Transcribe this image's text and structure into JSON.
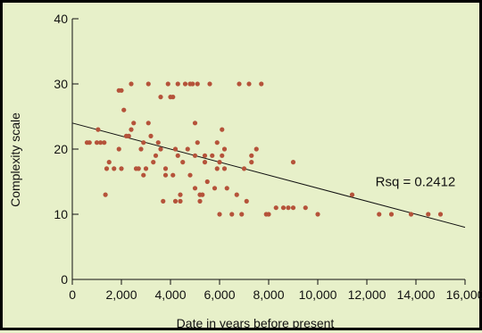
{
  "chart_data": {
    "type": "scatter",
    "title": "",
    "xlabel": "Date in years before present",
    "ylabel": "Complexity scale",
    "xlim": [
      0,
      16000
    ],
    "ylim": [
      0,
      40
    ],
    "xticks": [
      0,
      2000,
      4000,
      6000,
      8000,
      10000,
      12000,
      14000,
      16000
    ],
    "xtick_labels": [
      "0",
      "2,000",
      "4,000",
      "6,000",
      "8,000",
      "10,000",
      "12,000",
      "14,000",
      "16,000"
    ],
    "yticks": [
      0,
      10,
      20,
      30,
      40
    ],
    "ytick_labels": [
      "0",
      "10",
      "20",
      "30",
      "40"
    ],
    "grid": false,
    "point_color": "#b5533a",
    "trendline": {
      "x": [
        0,
        16000
      ],
      "y": [
        24,
        8
      ]
    },
    "annotation": {
      "text": "Rsq = 0.2412",
      "x": 12350,
      "y": 15
    },
    "points": [
      [
        600,
        21
      ],
      [
        700,
        21
      ],
      [
        1000,
        21
      ],
      [
        1050,
        23
      ],
      [
        1150,
        21
      ],
      [
        1300,
        21
      ],
      [
        1350,
        13
      ],
      [
        1400,
        17
      ],
      [
        1500,
        18
      ],
      [
        1700,
        17
      ],
      [
        1900,
        29
      ],
      [
        2000,
        29
      ],
      [
        1900,
        20
      ],
      [
        2000,
        17
      ],
      [
        2100,
        26
      ],
      [
        2200,
        22
      ],
      [
        2300,
        22
      ],
      [
        2400,
        30
      ],
      [
        2400,
        23
      ],
      [
        2500,
        24
      ],
      [
        2600,
        17
      ],
      [
        2700,
        17
      ],
      [
        2800,
        20
      ],
      [
        2900,
        16
      ],
      [
        2900,
        21
      ],
      [
        3000,
        17
      ],
      [
        3100,
        30
      ],
      [
        3100,
        24
      ],
      [
        3200,
        22
      ],
      [
        3300,
        18
      ],
      [
        3400,
        19
      ],
      [
        3500,
        21
      ],
      [
        3600,
        28
      ],
      [
        3600,
        20
      ],
      [
        3700,
        12
      ],
      [
        3800,
        17
      ],
      [
        3800,
        16
      ],
      [
        3900,
        30
      ],
      [
        4000,
        28
      ],
      [
        4100,
        28
      ],
      [
        4100,
        16
      ],
      [
        4200,
        12
      ],
      [
        4200,
        20
      ],
      [
        4300,
        19
      ],
      [
        4300,
        30
      ],
      [
        4400,
        12
      ],
      [
        4400,
        13
      ],
      [
        4500,
        18
      ],
      [
        4600,
        30
      ],
      [
        4700,
        20
      ],
      [
        4800,
        30
      ],
      [
        4800,
        16
      ],
      [
        4900,
        30
      ],
      [
        5000,
        24
      ],
      [
        5000,
        19
      ],
      [
        5000,
        14
      ],
      [
        5100,
        21
      ],
      [
        5100,
        30
      ],
      [
        5200,
        12
      ],
      [
        5200,
        13
      ],
      [
        5300,
        13
      ],
      [
        5400,
        18
      ],
      [
        5400,
        19
      ],
      [
        5500,
        15
      ],
      [
        5600,
        30
      ],
      [
        5700,
        19
      ],
      [
        5800,
        14
      ],
      [
        5900,
        21
      ],
      [
        5900,
        17
      ],
      [
        6000,
        18
      ],
      [
        6000,
        10
      ],
      [
        6100,
        23
      ],
      [
        6100,
        19
      ],
      [
        6200,
        20
      ],
      [
        6200,
        17
      ],
      [
        6300,
        14
      ],
      [
        6500,
        10
      ],
      [
        6700,
        13
      ],
      [
        6800,
        30
      ],
      [
        6900,
        10
      ],
      [
        7000,
        17
      ],
      [
        7100,
        12
      ],
      [
        7200,
        30
      ],
      [
        7300,
        18
      ],
      [
        7300,
        19
      ],
      [
        7500,
        20
      ],
      [
        7700,
        30
      ],
      [
        7900,
        10
      ],
      [
        8000,
        10
      ],
      [
        8300,
        11
      ],
      [
        8600,
        11
      ],
      [
        8800,
        11
      ],
      [
        9000,
        11
      ],
      [
        9000,
        18
      ],
      [
        9500,
        11
      ],
      [
        10000,
        10
      ],
      [
        11400,
        13
      ],
      [
        12500,
        10
      ],
      [
        13000,
        10
      ],
      [
        13800,
        10
      ],
      [
        14500,
        10
      ],
      [
        15000,
        10
      ]
    ]
  }
}
